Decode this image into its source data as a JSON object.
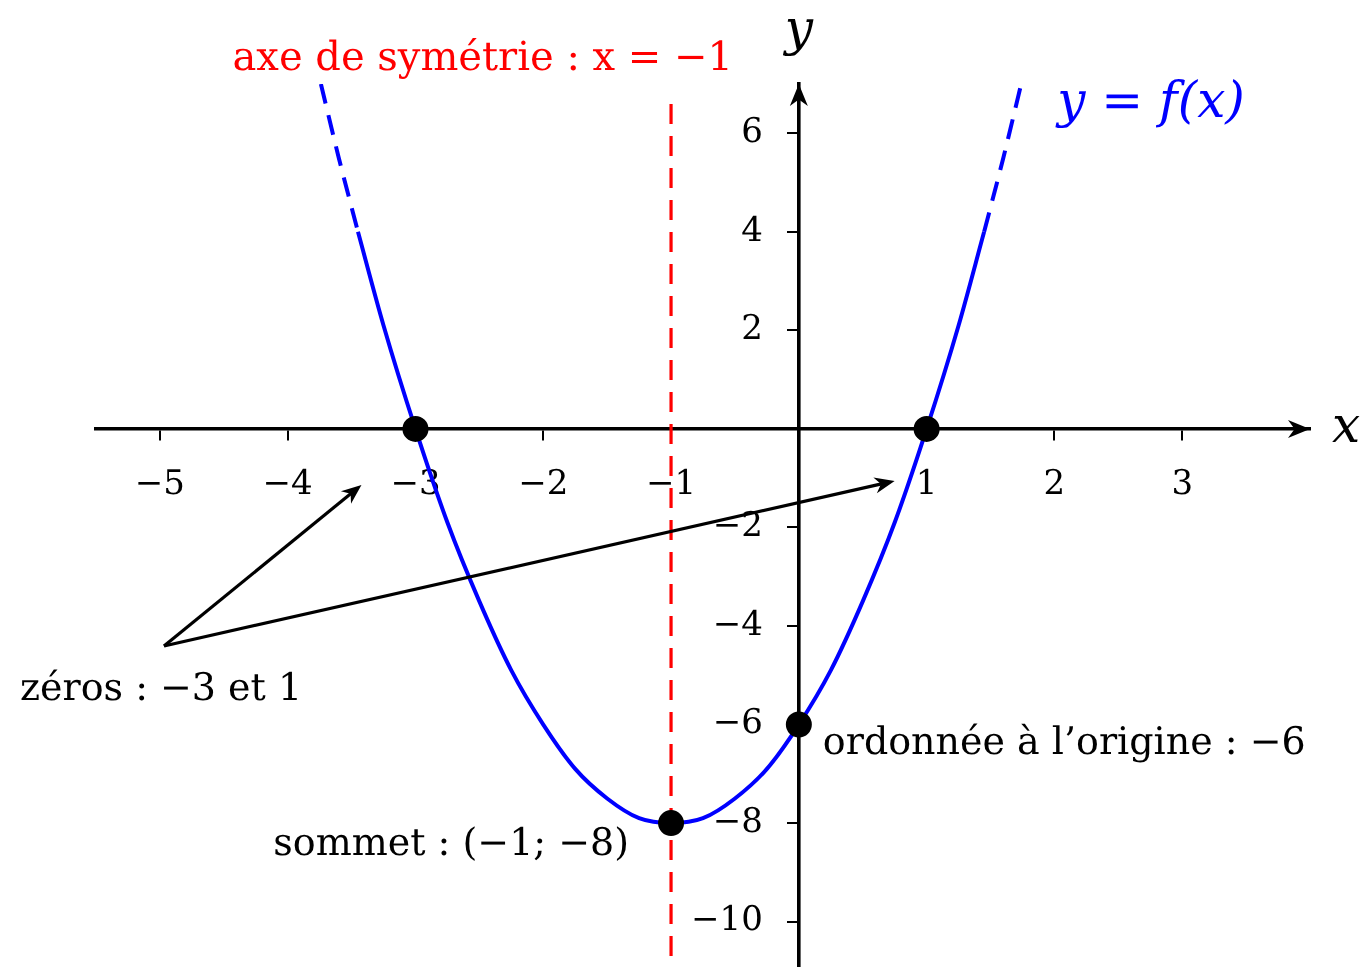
{
  "chart_data": {
    "type": "line",
    "xlabel": "x",
    "ylabel": "y",
    "xlim": [
      -5.5,
      4
    ],
    "ylim": [
      -10.9,
      7
    ],
    "xticks": [
      {
        "value": -5,
        "label": "−5"
      },
      {
        "value": -4,
        "label": "−4"
      },
      {
        "value": -3,
        "label": "−3"
      },
      {
        "value": -2,
        "label": "−2"
      },
      {
        "value": -1,
        "label": "−1"
      },
      1,
      2,
      3
    ],
    "yticks": [
      {
        "value": -10,
        "label": "−10"
      },
      {
        "value": -8,
        "label": "−8"
      },
      {
        "value": -6,
        "label": "−6"
      },
      {
        "value": -4,
        "label": "−4"
      },
      {
        "value": -2,
        "label": "−2"
      },
      2,
      4,
      6
    ],
    "series": [
      {
        "color": "#0000ff",
        "line_style": "dashed",
        "marker": "none",
        "x": [
          -3.74,
          -3.6,
          -3.45
        ],
        "values": [
          7,
          5.5,
          4
        ]
      },
      {
        "color": "#0000ff",
        "line_style": "solid",
        "marker": "none",
        "x": [
          -3.45,
          -3.25,
          -3,
          -2.75,
          -2.5,
          -2.25,
          -2,
          -1.75,
          -1.5,
          -1.25,
          -1,
          -0.75,
          -0.5,
          -0.25,
          0,
          0.25,
          0.5,
          0.75,
          1,
          1.25,
          1.45
        ],
        "values": [
          4,
          2.1,
          0,
          -1.9,
          -3.5,
          -4.9,
          -6,
          -6.9,
          -7.5,
          -7.9,
          -8,
          -7.9,
          -7.5,
          -6.9,
          -6,
          -4.9,
          -3.5,
          -1.9,
          0,
          2.1,
          4
        ]
      },
      {
        "name": "y = f(x)",
        "color": "#0000ff",
        "line_style": "dashed",
        "marker": "none",
        "x": [
          1.45,
          1.6,
          1.74
        ],
        "values": [
          4,
          5.5,
          7
        ]
      },
      {
        "type": "scatter",
        "color": "#000000",
        "marker": "circle",
        "x": [
          -3,
          1,
          -1,
          0
        ],
        "values": [
          0,
          0,
          -8,
          -6
        ]
      }
    ],
    "ref_lines": [
      {
        "axis": "x",
        "value": -1,
        "label": "axe de symétrie : x = −1",
        "color": "#ff0000",
        "line_style": "dashed"
      }
    ],
    "annotations": [
      "zéros : −3 et 1",
      {
        "text": "sommet : (−1; −8)",
        "x": -1,
        "y": -8
      },
      {
        "text": "ordonnée à l’origine : −6",
        "x": 0,
        "y": -6
      }
    ]
  }
}
